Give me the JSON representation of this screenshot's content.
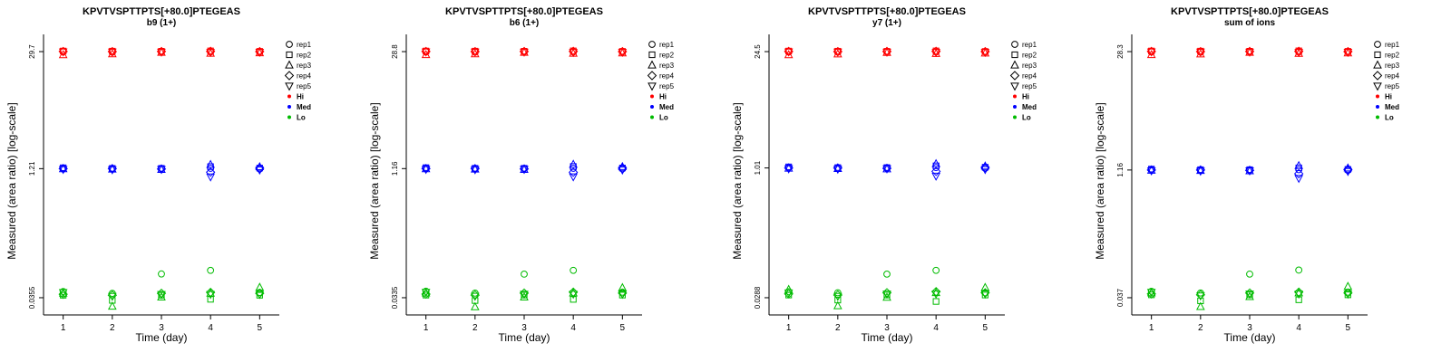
{
  "page": {
    "background": "#ffffff"
  },
  "legend": {
    "reps": [
      {
        "label": "rep1",
        "symbol": "circle"
      },
      {
        "label": "rep2",
        "symbol": "square"
      },
      {
        "label": "rep3",
        "symbol": "triangle-up"
      },
      {
        "label": "rep4",
        "symbol": "diamond"
      },
      {
        "label": "rep5",
        "symbol": "triangle-down"
      }
    ],
    "groups": [
      {
        "label": "Hi",
        "color": "#ff0000"
      },
      {
        "label": "Med",
        "color": "#0000ff"
      },
      {
        "label": "Lo",
        "color": "#00bb00"
      }
    ],
    "position": "right"
  },
  "chart_data": [
    {
      "type": "scatter",
      "title": "KPVTVSPTTPTS[+80.0]PTEGEAS",
      "subtitle": "b9 (1+)",
      "xlabel": "Time (day)",
      "ylabel": "Measured (area ratio) [log-scale]",
      "x_ticks": [
        1,
        2,
        3,
        4,
        5
      ],
      "xlim": [
        0.6,
        5.4
      ],
      "y_scale": "log",
      "grid": false,
      "y_ticks": [
        {
          "label": "29.7",
          "value": 29.7
        },
        {
          "label": "1.21",
          "value": 1.21
        },
        {
          "label": "0.0355",
          "value": 0.0355
        }
      ],
      "series": [
        {
          "name": "Hi",
          "color": "#ff0000",
          "days": [
            [
              29.5,
              30.2,
              27.2,
              29.8,
              29.6
            ],
            [
              29.3,
              30.1,
              27.8,
              29.7,
              29.5
            ],
            [
              29.6,
              30.0,
              29.0,
              29.8,
              29.4
            ],
            [
              29.5,
              30.3,
              28.3,
              29.9,
              29.2
            ],
            [
              29.4,
              29.9,
              28.6,
              29.7,
              29.3
            ]
          ]
        },
        {
          "name": "Med",
          "color": "#0000ff",
          "days": [
            [
              1.22,
              1.24,
              1.2,
              1.21,
              1.19
            ],
            [
              1.2,
              1.22,
              1.19,
              1.21,
              1.18
            ],
            [
              1.21,
              1.22,
              1.18,
              1.2,
              1.19
            ],
            [
              1.22,
              1.28,
              1.35,
              1.1,
              0.97
            ],
            [
              1.2,
              1.23,
              1.27,
              1.22,
              1.17
            ]
          ]
        },
        {
          "name": "Lo",
          "color": "#00bb00",
          "days": [
            [
              0.042,
              0.038,
              0.04,
              0.039,
              0.041
            ],
            [
              0.04,
              0.033,
              0.028,
              0.038,
              0.037
            ],
            [
              0.068,
              0.038,
              0.036,
              0.04,
              0.039
            ],
            [
              0.075,
              0.034,
              0.04,
              0.041,
              0.039
            ],
            [
              0.041,
              0.038,
              0.047,
              0.04,
              0.039
            ]
          ]
        }
      ]
    },
    {
      "type": "scatter",
      "title": "KPVTVSPTTPTS[+80.0]PTEGEAS",
      "subtitle": "b6 (1+)",
      "xlabel": "Time (day)",
      "ylabel": "Measured (area ratio) [log-scale]",
      "x_ticks": [
        1,
        2,
        3,
        4,
        5
      ],
      "xlim": [
        0.6,
        5.4
      ],
      "y_scale": "log",
      "grid": false,
      "y_ticks": [
        {
          "label": "28.8",
          "value": 28.8
        },
        {
          "label": "1.16",
          "value": 1.16
        },
        {
          "label": "0.0335",
          "value": 0.0335
        }
      ],
      "series": [
        {
          "name": "Hi",
          "color": "#ff0000",
          "days": [
            [
              28.6,
              29.3,
              26.4,
              28.9,
              28.7
            ],
            [
              28.4,
              29.2,
              27.0,
              28.8,
              28.6
            ],
            [
              28.7,
              29.1,
              28.1,
              28.9,
              28.5
            ],
            [
              28.6,
              29.4,
              27.4,
              29.0,
              28.3
            ],
            [
              28.5,
              29.0,
              27.7,
              28.8,
              28.4
            ]
          ]
        },
        {
          "name": "Med",
          "color": "#0000ff",
          "days": [
            [
              1.17,
              1.19,
              1.15,
              1.16,
              1.14
            ],
            [
              1.15,
              1.17,
              1.14,
              1.16,
              1.13
            ],
            [
              1.16,
              1.17,
              1.13,
              1.15,
              1.14
            ],
            [
              1.17,
              1.23,
              1.3,
              1.05,
              0.93
            ],
            [
              1.15,
              1.18,
              1.22,
              1.17,
              1.12
            ]
          ]
        },
        {
          "name": "Lo",
          "color": "#00bb00",
          "days": [
            [
              0.04,
              0.036,
              0.038,
              0.037,
              0.039
            ],
            [
              0.038,
              0.031,
              0.026,
              0.036,
              0.035
            ],
            [
              0.064,
              0.036,
              0.034,
              0.038,
              0.037
            ],
            [
              0.071,
              0.032,
              0.038,
              0.039,
              0.037
            ],
            [
              0.039,
              0.036,
              0.044,
              0.038,
              0.037
            ]
          ]
        }
      ]
    },
    {
      "type": "scatter",
      "title": "KPVTVSPTTPTS[+80.0]PTEGEAS",
      "subtitle": "y7 (1+)",
      "xlabel": "Time (day)",
      "ylabel": "Measured (area ratio) [log-scale]",
      "x_ticks": [
        1,
        2,
        3,
        4,
        5
      ],
      "xlim": [
        0.6,
        5.4
      ],
      "y_scale": "log",
      "grid": false,
      "y_ticks": [
        {
          "label": "24.5",
          "value": 24.5
        },
        {
          "label": "1.01",
          "value": 1.01
        },
        {
          "label": "0.0288",
          "value": 0.0288
        }
      ],
      "series": [
        {
          "name": "Hi",
          "color": "#ff0000",
          "days": [
            [
              24.3,
              24.9,
              22.4,
              24.6,
              24.4
            ],
            [
              24.2,
              24.8,
              22.9,
              24.5,
              24.3
            ],
            [
              24.4,
              24.7,
              23.8,
              24.6,
              24.2
            ],
            [
              24.3,
              25.0,
              23.2,
              24.7,
              24.1
            ],
            [
              24.2,
              24.6,
              23.5,
              24.5,
              24.1
            ]
          ]
        },
        {
          "name": "Med",
          "color": "#0000ff",
          "days": [
            [
              1.02,
              1.04,
              1.0,
              1.01,
              0.99
            ],
            [
              1.0,
              1.02,
              0.99,
              1.01,
              0.98
            ],
            [
              1.01,
              1.02,
              0.98,
              1.0,
              0.99
            ],
            [
              1.02,
              1.07,
              1.13,
              0.92,
              0.81
            ],
            [
              1.0,
              1.03,
              1.06,
              1.02,
              0.97
            ]
          ]
        },
        {
          "name": "Lo",
          "color": "#00bb00",
          "days": [
            [
              0.034,
              0.031,
              0.036,
              0.032,
              0.033
            ],
            [
              0.033,
              0.027,
              0.023,
              0.031,
              0.03
            ],
            [
              0.055,
              0.031,
              0.029,
              0.033,
              0.032
            ],
            [
              0.061,
              0.026,
              0.033,
              0.034,
              0.032
            ],
            [
              0.033,
              0.031,
              0.038,
              0.033,
              0.032
            ]
          ]
        }
      ]
    },
    {
      "type": "scatter",
      "title": "KPVTVSPTTPTS[+80.0]PTEGEAS",
      "subtitle": "sum of ions",
      "xlabel": "Time (day)",
      "ylabel": "Measured (area ratio) [log-scale]",
      "x_ticks": [
        1,
        2,
        3,
        4,
        5
      ],
      "xlim": [
        0.6,
        5.4
      ],
      "y_scale": "log",
      "grid": false,
      "y_ticks": [
        {
          "label": "28.3",
          "value": 28.3
        },
        {
          "label": "1.16",
          "value": 1.16
        },
        {
          "label": "0.037",
          "value": 0.037
        }
      ],
      "series": [
        {
          "name": "Hi",
          "color": "#ff0000",
          "days": [
            [
              28.1,
              28.8,
              26.0,
              28.4,
              28.2
            ],
            [
              27.9,
              28.7,
              26.5,
              28.3,
              28.1
            ],
            [
              28.2,
              28.6,
              27.6,
              28.4,
              28.0
            ],
            [
              28.1,
              28.9,
              26.9,
              28.5,
              27.8
            ],
            [
              28.0,
              28.5,
              27.2,
              28.3,
              27.9
            ]
          ]
        },
        {
          "name": "Med",
          "color": "#0000ff",
          "days": [
            [
              1.17,
              1.19,
              1.15,
              1.16,
              1.14
            ],
            [
              1.15,
              1.17,
              1.14,
              1.16,
              1.13
            ],
            [
              1.16,
              1.17,
              1.13,
              1.15,
              1.14
            ],
            [
              1.17,
              1.23,
              1.3,
              1.05,
              0.93
            ],
            [
              1.15,
              1.18,
              1.22,
              1.17,
              1.12
            ]
          ]
        },
        {
          "name": "Lo",
          "color": "#00bb00",
          "days": [
            [
              0.044,
              0.04,
              0.042,
              0.041,
              0.043
            ],
            [
              0.042,
              0.034,
              0.029,
              0.04,
              0.039
            ],
            [
              0.07,
              0.04,
              0.038,
              0.042,
              0.041
            ],
            [
              0.078,
              0.035,
              0.042,
              0.043,
              0.041
            ],
            [
              0.043,
              0.04,
              0.05,
              0.042,
              0.041
            ]
          ]
        }
      ]
    }
  ]
}
